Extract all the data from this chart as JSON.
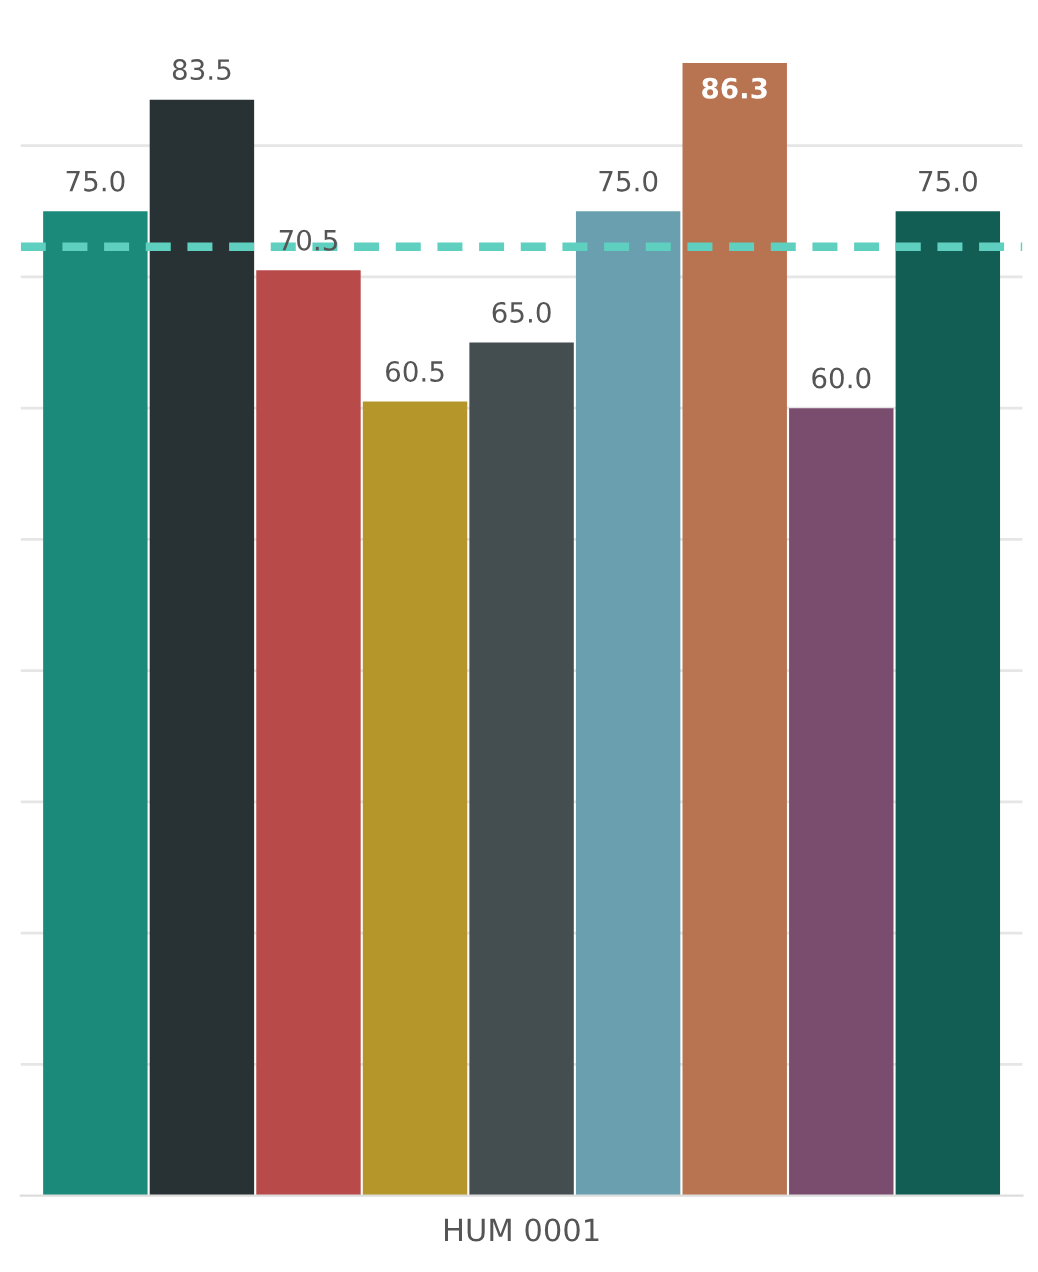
{
  "chart_data": {
    "type": "bar",
    "xlabel": "HUM 0001",
    "categories": [
      null,
      null,
      null,
      null,
      null,
      null,
      null,
      null,
      null
    ],
    "values": [
      75.0,
      83.5,
      70.5,
      60.5,
      65.0,
      75.0,
      86.3,
      60.0,
      75.0
    ],
    "colors": [
      "#1b8a7a",
      "#283133",
      "#b84a4a",
      "#b5962a",
      "#444d50",
      "#6a9fb0",
      "#b87350",
      "#7a4d6e",
      "#125e55"
    ],
    "value_labels": [
      "75.0",
      "83.5",
      "70.5",
      "60.5",
      "65.0",
      "75.0",
      "86.3",
      "60.0",
      "75.0"
    ],
    "yticks": [
      {
        "value": 10,
        "label": null
      },
      {
        "value": 20,
        "label": null
      },
      {
        "value": 30,
        "label": null
      },
      {
        "value": 40,
        "label": null
      },
      {
        "value": 50,
        "label": null
      },
      {
        "value": 60,
        "label": null
      },
      {
        "value": 70,
        "label": null
      },
      {
        "value": 80,
        "label": null
      }
    ],
    "grid": "y",
    "tick_labels": false,
    "ref_lines": [
      {
        "axis": "y",
        "value": 72.3,
        "color": "#5fd0c0",
        "line_style": "dashed"
      }
    ]
  }
}
